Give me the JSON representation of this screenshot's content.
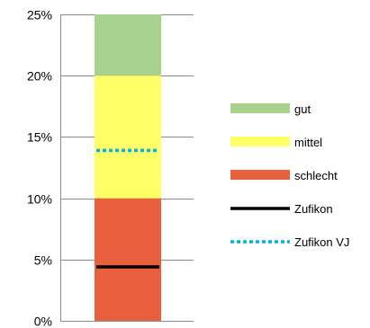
{
  "chart_data": {
    "type": "bar",
    "stacked": true,
    "categories": [
      ""
    ],
    "ylim": [
      0,
      25
    ],
    "ytick_values": [
      0,
      5,
      10,
      15,
      20,
      25
    ],
    "ytick_labels": [
      "0%",
      "5%",
      "10%",
      "15%",
      "20%",
      "25%"
    ],
    "grid": true,
    "series": [
      {
        "name": "schlecht",
        "values": [
          10
        ],
        "color": "#e8603c"
      },
      {
        "name": "mittel",
        "values": [
          10
        ],
        "color": "#ffff66"
      },
      {
        "name": "gut",
        "values": [
          5
        ],
        "color": "#a9d18e"
      }
    ],
    "reference_lines": [
      {
        "name": "Zufikon",
        "value": 4.4,
        "color": "#000000",
        "style": "solid"
      },
      {
        "name": "Zufikon VJ",
        "value": 13.9,
        "color": "#00b0f0",
        "style": "dotted"
      }
    ],
    "legend_position": "right"
  }
}
